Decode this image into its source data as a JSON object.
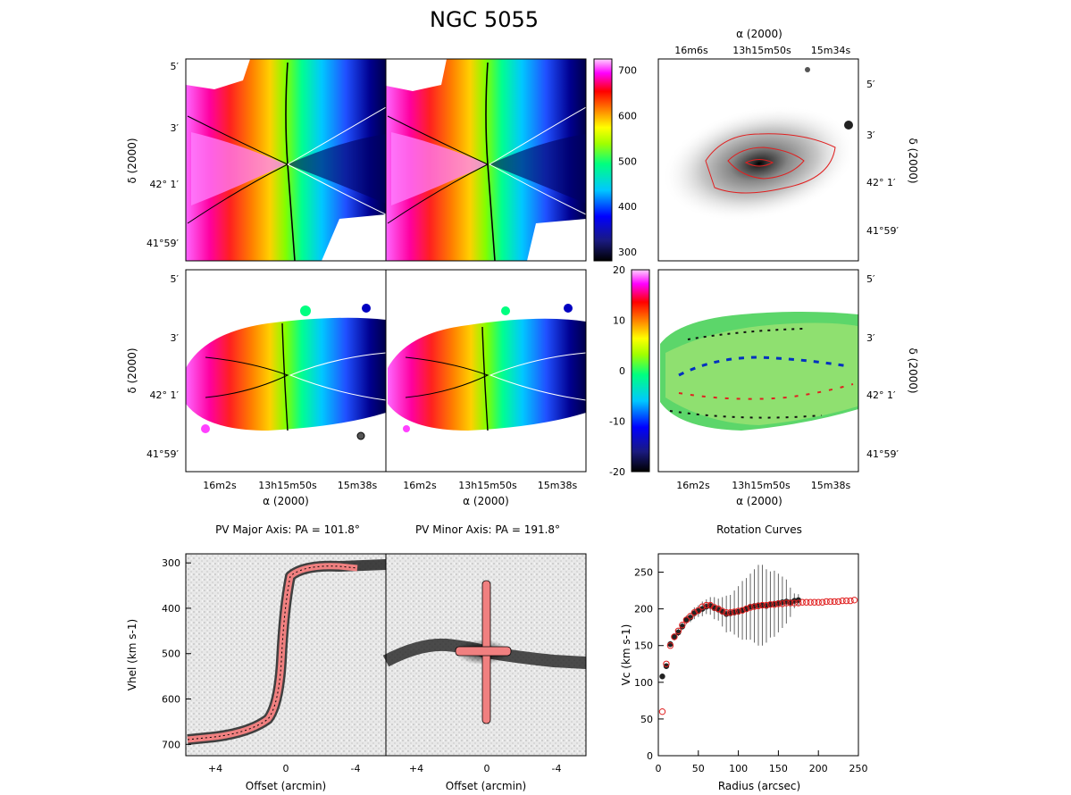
{
  "figure": {
    "title": "NGC 5055",
    "colorbar_velocity": {
      "ticks": [
        "700",
        "600",
        "500",
        "400",
        "300"
      ],
      "range": [
        280,
        725
      ]
    },
    "colorbar_residual": {
      "ticks": [
        "20",
        "10",
        "0",
        "-10",
        "-20"
      ],
      "range": [
        -20,
        20
      ]
    }
  },
  "axes": {
    "dec_label": "δ (2000)",
    "ra_label": "α (2000)",
    "dec_ticks": [
      "5′",
      "3′",
      "42° 1′",
      "41°59′"
    ],
    "ra_ticks": [
      "16m2s",
      "13h15m50s",
      "15m38s"
    ],
    "ra_ticks_top": [
      "16m6s",
      "13h15m50s",
      "15m34s"
    ]
  },
  "pv_panels": {
    "major_title": "PV Major Axis: PA = 101.8°",
    "minor_title": "PV Minor Axis: PA = 191.8°",
    "ylabel": "Vhel (km s-1)",
    "xlabel": "Offset (arcmin)",
    "y_ticks": [
      "300",
      "400",
      "500",
      "600",
      "700"
    ],
    "x_ticks": [
      "+4",
      "0",
      "-4"
    ]
  },
  "chart_data": {
    "type": "scatter",
    "title": "Rotation Curves",
    "xlabel": "Radius (arcsec)",
    "ylabel": "Vc (km s-1)",
    "xlim": [
      0,
      250
    ],
    "ylim": [
      0,
      275
    ],
    "x_ticks": [
      0,
      50,
      100,
      150,
      200,
      250
    ],
    "y_ticks": [
      0,
      50,
      100,
      150,
      200,
      250
    ],
    "grid": false,
    "series": [
      {
        "marker": "red-open-circle",
        "color": "#e02020",
        "x": [
          5,
          10,
          15,
          20,
          25,
          30,
          35,
          40,
          45,
          50,
          55,
          60,
          65,
          70,
          75,
          80,
          85,
          90,
          95,
          100,
          105,
          110,
          115,
          120,
          125,
          130,
          135,
          140,
          145,
          150,
          155,
          160,
          165,
          170,
          175,
          180,
          185,
          190,
          195,
          200,
          205,
          210,
          215,
          220,
          225,
          230,
          235,
          240,
          245
        ],
        "y": [
          60,
          125,
          150,
          162,
          170,
          178,
          185,
          190,
          195,
          198,
          203,
          205,
          205,
          202,
          200,
          197,
          195,
          195,
          196,
          197,
          198,
          200,
          202,
          203,
          204,
          205,
          205,
          206,
          206,
          207,
          207,
          208,
          208,
          208,
          208,
          209,
          209,
          209,
          209,
          209,
          209,
          210,
          210,
          210,
          210,
          211,
          211,
          211,
          212
        ]
      },
      {
        "marker": "black-filled-circle",
        "color": "#222222",
        "x": [
          5,
          10,
          15,
          20,
          25,
          30,
          35,
          40,
          45,
          50,
          55,
          60,
          65,
          70,
          75,
          80,
          85,
          90,
          95,
          100,
          105,
          110,
          115,
          120,
          125,
          130,
          135,
          140,
          145,
          150,
          155,
          160,
          165,
          170,
          175
        ],
        "y": [
          108,
          122,
          152,
          162,
          168,
          176,
          185,
          188,
          194,
          197,
          200,
          203,
          204,
          201,
          199,
          196,
          193,
          194,
          195,
          196,
          198,
          200,
          203,
          204,
          205,
          205,
          204,
          206,
          207,
          208,
          209,
          210,
          209,
          211,
          212
        ],
        "err": [
          2,
          4,
          4,
          5,
          5,
          5,
          6,
          6,
          8,
          8,
          10,
          10,
          12,
          15,
          15,
          20,
          25,
          25,
          30,
          35,
          40,
          42,
          45,
          50,
          55,
          55,
          50,
          45,
          45,
          40,
          35,
          30,
          20,
          10,
          8
        ]
      }
    ]
  }
}
